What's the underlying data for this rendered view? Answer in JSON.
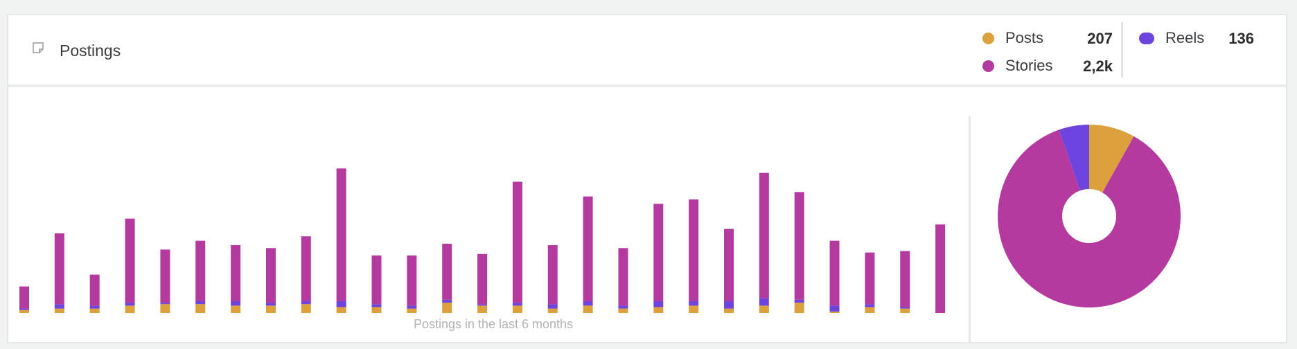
{
  "widget": {
    "title": "Postings",
    "title_icon": "note-icon"
  },
  "legend": {
    "posts": {
      "label": "Posts",
      "value": "207",
      "color": "#dca03c"
    },
    "stories": {
      "label": "Stories",
      "value": "2,2k",
      "color": "#b43a9f"
    },
    "reels": {
      "label": "Reels",
      "value": "136",
      "color": "#6d44dd"
    }
  },
  "chart_data": [
    {
      "type": "bar",
      "stacked": true,
      "title": "",
      "subtitle": "Postings in the last 6 months",
      "xlabel": "",
      "ylabel": "",
      "grid": false,
      "series": [
        {
          "name": "Posts",
          "color": "#dca03c",
          "values": [
            2,
            3,
            3,
            5,
            6,
            6,
            5,
            5,
            6,
            4,
            4,
            3,
            7,
            5,
            5,
            3,
            5,
            3,
            4,
            5,
            3,
            5,
            7,
            1,
            4,
            3,
            0
          ]
        },
        {
          "name": "Reels",
          "color": "#6d44dd",
          "values": [
            1,
            3,
            2,
            2,
            1,
            2,
            3,
            2,
            2,
            4,
            2,
            2,
            2,
            1,
            2,
            3,
            3,
            2,
            4,
            3,
            5,
            5,
            2,
            4,
            2,
            1,
            0
          ]
        },
        {
          "name": "Stories",
          "color": "#b43a9f",
          "values": [
            15,
            48,
            21,
            57,
            36,
            41,
            38,
            37,
            44,
            90,
            33,
            34,
            38,
            34,
            82,
            40,
            71,
            39,
            66,
            69,
            49,
            85,
            73,
            44,
            35,
            38,
            60
          ]
        }
      ]
    },
    {
      "type": "pie",
      "donut": true,
      "slices": [
        {
          "label": "Posts",
          "value": 207,
          "color": "#dca03c"
        },
        {
          "label": "Stories",
          "value": 2200,
          "color": "#b43a9f"
        },
        {
          "label": "Reels",
          "value": 136,
          "color": "#6d44dd"
        }
      ]
    }
  ]
}
